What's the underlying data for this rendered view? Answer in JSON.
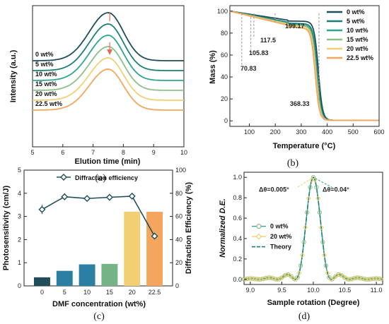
{
  "colors": {
    "c0": "#1f4e5a",
    "c5": "#1c7f78",
    "c10": "#2ea58e",
    "c15": "#8cc087",
    "c20": "#f2cf73",
    "c225": "#f5a65e",
    "bar_dark": "#1f4e5a",
    "bar_blue": "#2b7fa3",
    "bar_teal": "#2ea58e",
    "bar_green": "#74b486",
    "line_de": "#1f4e5a",
    "arrow": "#e06c55",
    "theory": "#1f7f75"
  },
  "chart_data": [
    {
      "panel": "a",
      "type": "line",
      "caption": "(a)",
      "xlabel": "Elution time (min)",
      "ylabel": "Intensity (a.u.)",
      "xlim": [
        5,
        10
      ],
      "xticks": [
        "5",
        "6",
        "7",
        "8",
        "9",
        "10"
      ],
      "series": [
        {
          "name": "0 wt%",
          "peak_x": 7.5,
          "baseline": 0.0
        },
        {
          "name": "5 wt%",
          "peak_x": 7.5,
          "baseline": -0.07
        },
        {
          "name": "10 wt%",
          "peak_x": 7.5,
          "baseline": -0.14
        },
        {
          "name": "15 wt%",
          "peak_x": 7.5,
          "baseline": -0.21
        },
        {
          "name": "20 wt%",
          "peak_x": 7.5,
          "baseline": -0.28
        },
        {
          "name": "22.5 wt%",
          "peak_x": 7.5,
          "baseline": -0.35
        }
      ]
    },
    {
      "panel": "b",
      "type": "line",
      "caption": "(b)",
      "xlabel": "Temperature (°C)",
      "ylabel": "Mass (%)",
      "xlim": [
        25,
        600
      ],
      "ylim": [
        -5,
        105
      ],
      "xticks": [
        "100",
        "200",
        "300",
        "400",
        "500",
        "600"
      ],
      "yticks": [
        "0",
        "20",
        "40",
        "60",
        "80",
        "100"
      ],
      "legend": [
        "0 wt%",
        "5 wt%",
        "10 wt%",
        "15 wt%",
        "20 wt%",
        "22.5 wt%"
      ],
      "annotations": [
        "70.83",
        "105.83",
        "117.5",
        "199.17",
        "368.33"
      ],
      "onset_temperatures": [
        70.83,
        105.83,
        117.5,
        199.17,
        368.33
      ]
    },
    {
      "panel": "c",
      "type": "bar",
      "caption": "(c)",
      "xlabel": "DMF concentration (wt%)",
      "ylabel": "Photosensitivity (cm/J)",
      "ylabel_right": "Diffraction Efficiency (%)",
      "categories": [
        "0",
        "5",
        "10",
        "15",
        "20",
        "22.5"
      ],
      "values": [
        0.37,
        0.65,
        0.93,
        0.95,
        3.2,
        3.2
      ],
      "ylim": [
        0,
        5
      ],
      "yticks": [
        "0",
        "1",
        "2",
        "3",
        "4",
        "5"
      ],
      "y2lim": [
        0,
        100
      ],
      "y2ticks": [
        "0",
        "20",
        "40",
        "60",
        "80",
        "100"
      ],
      "line_series": {
        "name": "Diffraction efficiency",
        "values": [
          66,
          77,
          75.5,
          76.5,
          77.5,
          43
        ],
        "errors": [
          4,
          3,
          1.5,
          3,
          1,
          2
        ]
      }
    },
    {
      "panel": "d",
      "type": "line",
      "caption": "(d)",
      "xlabel": "Sample rotation (Degree)",
      "ylabel": "Normalized D.E.",
      "xlim": [
        8.9,
        11.1
      ],
      "ylim": [
        -0.05,
        1.05
      ],
      "xticks": [
        "9.0",
        "9.5",
        "10.0",
        "10.5",
        "11.0"
      ],
      "yticks": [
        "0.0",
        "0.2",
        "0.4",
        "0.6",
        "0.8",
        "1.0"
      ],
      "legend": [
        "0 wt%",
        "20 wt%",
        "Theory"
      ],
      "annotations": [
        "Δθ=0.005°",
        "Δθ=0.04°"
      ]
    }
  ]
}
